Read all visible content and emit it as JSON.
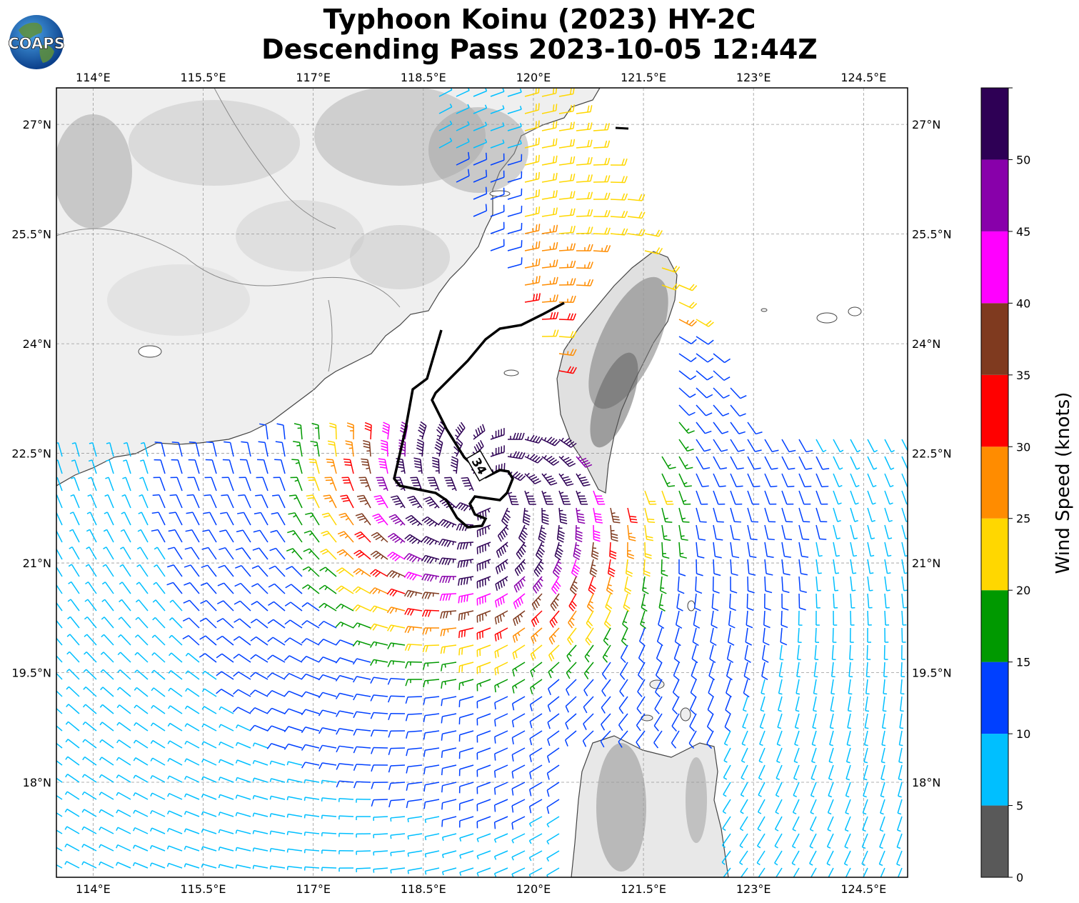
{
  "title": {
    "line1": "Typhoon Koinu (2023) HY-2C",
    "line2": "Descending Pass 2023-10-05 12:44Z"
  },
  "logo": {
    "text": "COAPS",
    "icon": "globe-logo-icon"
  },
  "map": {
    "lon_range": [
      113.5,
      125.1
    ],
    "lat_range": [
      16.7,
      27.5
    ],
    "lon_ticks": [
      "114°E",
      "115.5°E",
      "117°E",
      "118.5°E",
      "120°E",
      "121.5°E",
      "123°E",
      "124.5°E"
    ],
    "lon_values": [
      114,
      115.5,
      117,
      118.5,
      120,
      121.5,
      123,
      124.5
    ],
    "lat_ticks": [
      "27°N",
      "25.5°N",
      "24°N",
      "22.5°N",
      "21°N",
      "19.5°N",
      "18°N"
    ],
    "lat_values": [
      27,
      25.5,
      24,
      22.5,
      21,
      19.5,
      18
    ],
    "gridlines": true,
    "storm_center": {
      "lon": 119.4,
      "lat": 22.0
    },
    "radius_label": "34"
  },
  "colorbar": {
    "label": "Wind Speed (knots)",
    "ticks": [
      "0",
      "5",
      "10",
      "15",
      "20",
      "25",
      "30",
      "35",
      "40",
      "45",
      "50"
    ],
    "tick_values": [
      0,
      5,
      10,
      15,
      20,
      25,
      30,
      35,
      40,
      45,
      50
    ],
    "max": 55,
    "bins": [
      {
        "min": 0,
        "max": 5,
        "color": "#595959"
      },
      {
        "min": 5,
        "max": 10,
        "color": "#00bfff"
      },
      {
        "min": 10,
        "max": 15,
        "color": "#0040ff"
      },
      {
        "min": 15,
        "max": 20,
        "color": "#009900"
      },
      {
        "min": 20,
        "max": 25,
        "color": "#ffd700"
      },
      {
        "min": 25,
        "max": 30,
        "color": "#ff8c00"
      },
      {
        "min": 30,
        "max": 35,
        "color": "#ff0000"
      },
      {
        "min": 35,
        "max": 40,
        "color": "#7f3a1f"
      },
      {
        "min": 40,
        "max": 45,
        "color": "#ff00ff"
      },
      {
        "min": 45,
        "max": 50,
        "color": "#8800aa"
      },
      {
        "min": 50,
        "max": 55,
        "color": "#2e0055"
      }
    ]
  }
}
